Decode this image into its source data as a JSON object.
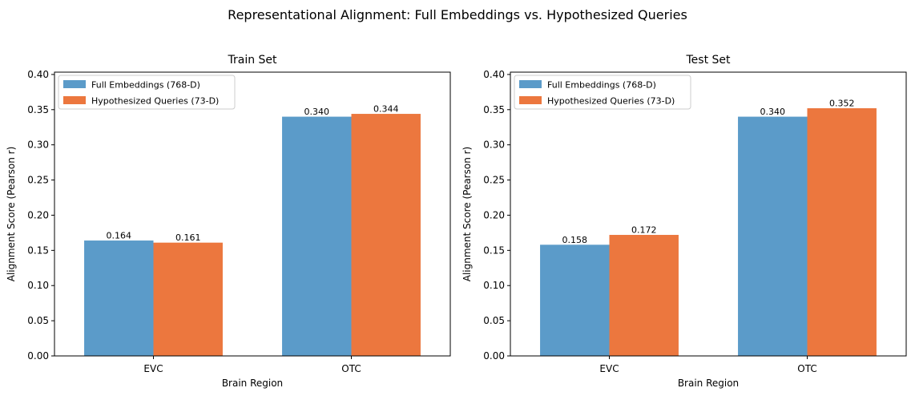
{
  "figure_title": "Representational Alignment: Full Embeddings vs. Hypothesized Queries",
  "colors": {
    "full": "#5b9bc9",
    "hyp": "#ec773e"
  },
  "chart_data": [
    {
      "type": "bar",
      "title": "Train Set",
      "xlabel": "Brain Region",
      "ylabel": "Alignment Score (Pearson r)",
      "ylim": [
        0,
        0.4033
      ],
      "yticks": [
        0.0,
        0.05,
        0.1,
        0.15,
        0.2,
        0.25,
        0.3,
        0.35,
        0.4
      ],
      "ytick_labels": [
        "0.00",
        "0.05",
        "0.10",
        "0.15",
        "0.20",
        "0.25",
        "0.30",
        "0.35",
        "0.40"
      ],
      "categories": [
        "EVC",
        "OTC"
      ],
      "legend_position": "upper-left",
      "series": [
        {
          "name": "Full Embeddings (768-D)",
          "values": [
            0.164,
            0.34
          ],
          "labels": [
            "0.164",
            "0.340"
          ]
        },
        {
          "name": "Hypothesized Queries (73-D)",
          "values": [
            0.161,
            0.344
          ],
          "labels": [
            "0.161",
            "0.344"
          ]
        }
      ]
    },
    {
      "type": "bar",
      "title": "Test Set",
      "xlabel": "Brain Region",
      "ylabel": "Alignment Score (Pearson r)",
      "ylim": [
        0,
        0.4033
      ],
      "yticks": [
        0.0,
        0.05,
        0.1,
        0.15,
        0.2,
        0.25,
        0.3,
        0.35,
        0.4
      ],
      "ytick_labels": [
        "0.00",
        "0.05",
        "0.10",
        "0.15",
        "0.20",
        "0.25",
        "0.30",
        "0.35",
        "0.40"
      ],
      "categories": [
        "EVC",
        "OTC"
      ],
      "legend_position": "upper-left",
      "series": [
        {
          "name": "Full Embeddings (768-D)",
          "values": [
            0.158,
            0.34
          ],
          "labels": [
            "0.158",
            "0.340"
          ]
        },
        {
          "name": "Hypothesized Queries (73-D)",
          "values": [
            0.172,
            0.352
          ],
          "labels": [
            "0.172",
            "0.352"
          ]
        }
      ]
    }
  ]
}
